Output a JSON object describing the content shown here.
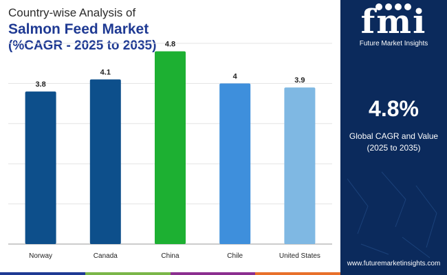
{
  "title": {
    "line1": "Country-wise Analysis of",
    "line2": "Salmon Feed Market",
    "line3": "(%CAGR - 2025 to 2035)"
  },
  "chart_data": {
    "type": "bar",
    "categories": [
      "Norway",
      "Canada",
      "China",
      "Chile",
      "United States"
    ],
    "values": [
      3.8,
      4.1,
      4.8,
      4,
      3.9
    ],
    "value_labels": [
      "3.8",
      "4.1",
      "4.8",
      "4",
      "3.9"
    ],
    "bar_colors": [
      "#0d4f8b",
      "#0d4f8b",
      "#1db032",
      "#3e8fdc",
      "#7fb8e3"
    ],
    "ylim": [
      0,
      5
    ],
    "yticks": [
      0,
      1,
      2,
      3,
      4,
      5
    ],
    "grid": true,
    "title": "",
    "xlabel": "",
    "ylabel": ""
  },
  "side_panel": {
    "logo_text": "fmi",
    "logo_subtitle": "Future Market Insights",
    "stat_value": "4.8%",
    "stat_label_line1": "Global CAGR and Value",
    "stat_label_line2": "(2025 to 2035)",
    "url": "www.futuremarketinsights.com",
    "background_color": "#0b2a5c"
  },
  "bottom_strip_colors": [
    "#1f3a93",
    "#7ab648",
    "#8b2f8f",
    "#e8702a"
  ]
}
